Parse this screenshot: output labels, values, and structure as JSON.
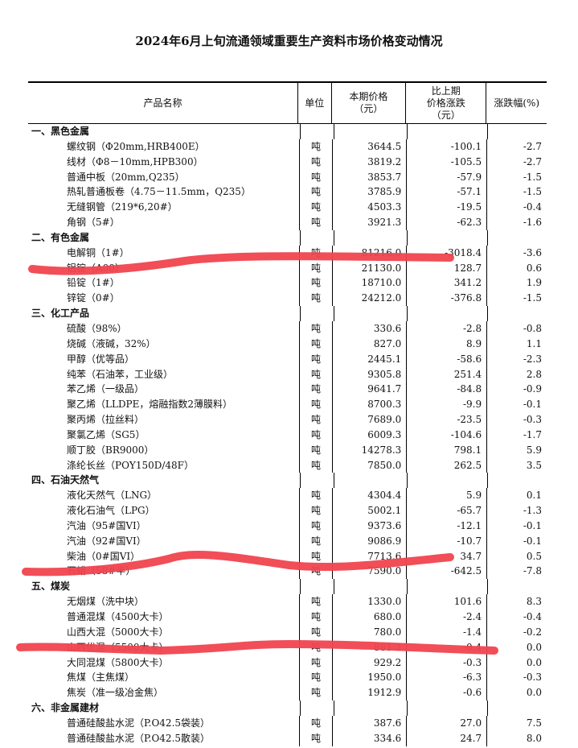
{
  "title": "2024年6月上旬流通领域重要生产资料市场价格变动情况",
  "headers": [
    "产品名称",
    "单位",
    "本期价格\n（元）",
    "比上期\n价格涨跌\n（元）",
    "涨跌幅(%)"
  ],
  "rows": [
    {
      "type": "sec",
      "name": "一、黑色金属"
    },
    {
      "name": "螺纹钢（Φ20mm,HRB400E）",
      "unit": "吨",
      "price": "3644.5",
      "change": "-100.1",
      "pct": "-2.7"
    },
    {
      "name": "线材（Φ8－10mm,HPB300）",
      "unit": "吨",
      "price": "3819.2",
      "change": "-105.5",
      "pct": "-2.7"
    },
    {
      "name": "普通中板（20mm,Q235）",
      "unit": "吨",
      "price": "3853.7",
      "change": "-57.9",
      "pct": "-1.5"
    },
    {
      "name": "热轧普通板卷（4.75－11.5mm，Q235）",
      "unit": "吨",
      "price": "3785.9",
      "change": "-57.1",
      "pct": "-1.5"
    },
    {
      "name": "无缝钢管（219*6,20#）",
      "unit": "吨",
      "price": "4503.3",
      "change": "-19.5",
      "pct": "-0.4"
    },
    {
      "name": "角钢（5#）",
      "unit": "吨",
      "price": "3921.3",
      "change": "-62.3",
      "pct": "-1.6"
    },
    {
      "type": "sec",
      "name": "二、有色金属"
    },
    {
      "name": "电解铜（1#）",
      "unit": "吨",
      "price": "81216.0",
      "change": "-3018.4",
      "pct": "-3.6"
    },
    {
      "name": "铝锭（A00）",
      "unit": "吨",
      "price": "21130.0",
      "change": "128.7",
      "pct": "0.6"
    },
    {
      "name": "铅锭（1#）",
      "unit": "吨",
      "price": "18710.0",
      "change": "341.2",
      "pct": "1.9"
    },
    {
      "name": "锌锭（0#）",
      "unit": "吨",
      "price": "24212.0",
      "change": "-376.8",
      "pct": "-1.5"
    },
    {
      "type": "sec",
      "name": "三、化工产品"
    },
    {
      "name": "硫酸（98%）",
      "unit": "吨",
      "price": "330.6",
      "change": "-2.8",
      "pct": "-0.8"
    },
    {
      "name": "烧碱（液碱，32%）",
      "unit": "吨",
      "price": "827.0",
      "change": "8.9",
      "pct": "1.1"
    },
    {
      "name": "甲醇（优等品）",
      "unit": "吨",
      "price": "2445.1",
      "change": "-58.6",
      "pct": "-2.3"
    },
    {
      "name": "纯苯（石油苯，工业级）",
      "unit": "吨",
      "price": "9305.8",
      "change": "251.4",
      "pct": "2.8"
    },
    {
      "name": "苯乙烯（一级品）",
      "unit": "吨",
      "price": "9641.7",
      "change": "-84.8",
      "pct": "-0.9"
    },
    {
      "name": "聚乙烯（LLDPE，熔融指数2薄膜料）",
      "unit": "吨",
      "price": "8700.3",
      "change": "-9.9",
      "pct": "-0.1"
    },
    {
      "name": "聚丙烯（拉丝料）",
      "unit": "吨",
      "price": "7689.0",
      "change": "-23.5",
      "pct": "-0.3"
    },
    {
      "name": "聚氯乙烯（SG5）",
      "unit": "吨",
      "price": "6009.3",
      "change": "-104.6",
      "pct": "-1.7"
    },
    {
      "name": "顺丁胶（BR9000）",
      "unit": "吨",
      "price": "14278.3",
      "change": "798.1",
      "pct": "5.9"
    },
    {
      "name": "涤纶长丝（POY150D/48F）",
      "unit": "吨",
      "price": "7850.0",
      "change": "262.5",
      "pct": "3.5"
    },
    {
      "type": "sec",
      "name": "四、石油天然气"
    },
    {
      "name": "液化天然气（LNG）",
      "unit": "吨",
      "price": "4304.4",
      "change": "5.9",
      "pct": "0.1"
    },
    {
      "name": "液化石油气（LPG）",
      "unit": "吨",
      "price": "5002.1",
      "change": "-65.7",
      "pct": "-1.3"
    },
    {
      "name": "汽油（95#国VI）",
      "unit": "吨",
      "price": "9373.6",
      "change": "-12.1",
      "pct": "-0.1"
    },
    {
      "name": "汽油（92#国VI）",
      "unit": "吨",
      "price": "9086.9",
      "change": "-10.7",
      "pct": "-0.1"
    },
    {
      "name": "柴油（0#国VI）",
      "unit": "吨",
      "price": "7713.6",
      "change": "34.7",
      "pct": "0.5"
    },
    {
      "name": "石蜡（58#半）",
      "unit": "吨",
      "price": "7590.0",
      "change": "-642.5",
      "pct": "-7.8"
    },
    {
      "type": "sec",
      "name": "五、煤炭"
    },
    {
      "name": "无烟煤（洗中块）",
      "unit": "吨",
      "price": "1330.0",
      "change": "101.6",
      "pct": "8.3"
    },
    {
      "name": "普通混煤（4500大卡）",
      "unit": "吨",
      "price": "680.0",
      "change": "-2.4",
      "pct": "-0.4"
    },
    {
      "name": "山西大混（5000大卡）",
      "unit": "吨",
      "price": "780.0",
      "change": "-1.4",
      "pct": "-0.2"
    },
    {
      "name": "山西优混（5500大卡）",
      "unit": "吨",
      "price": "881.2",
      "change": "-0.4",
      "pct": "0.0"
    },
    {
      "name": "大同混煤（5800大卡）",
      "unit": "吨",
      "price": "929.2",
      "change": "-0.3",
      "pct": "0.0"
    },
    {
      "name": "焦煤（主焦煤）",
      "unit": "吨",
      "price": "1950.0",
      "change": "-6.3",
      "pct": "-0.3"
    },
    {
      "name": "焦炭（准一级冶金焦）",
      "unit": "吨",
      "price": "1912.9",
      "change": "-0.6",
      "pct": "0.0"
    },
    {
      "type": "sec",
      "name": "六、非金属建材"
    },
    {
      "name": "普通硅酸盐水泥（P.O42.5袋装）",
      "unit": "吨",
      "price": "387.6",
      "change": "27.0",
      "pct": "7.5"
    },
    {
      "name": "普通硅酸盐水泥（P.O42.5散装）",
      "unit": "吨",
      "price": "334.6",
      "change": "24.7",
      "pct": "8.0"
    }
  ],
  "annotation_color": "#f0454f"
}
